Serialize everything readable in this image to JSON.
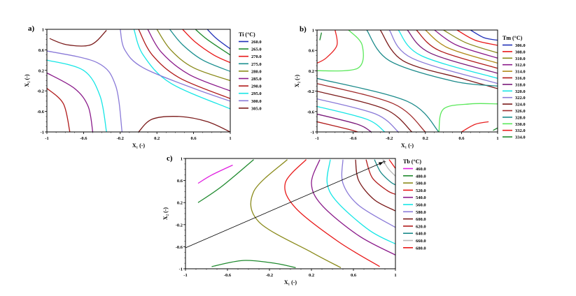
{
  "chart_data": [
    {
      "type": "contour",
      "panel_label": "a)",
      "title": "Ti (°C)",
      "xlabel": "X₁ (-)",
      "ylabel": "X₂ (-)",
      "xlim": [
        -1,
        1
      ],
      "ylim": [
        -1,
        1
      ],
      "xticks": [
        "-1",
        "-0.6",
        "-0.2",
        "0.2",
        "0.6",
        "1"
      ],
      "yticks": [
        "1",
        "0.6",
        "0.2",
        "-0.2",
        "-0.6",
        "-1"
      ],
      "legend": [
        {
          "label": "260.0",
          "color": "#1f2fb8"
        },
        {
          "label": "265.0",
          "color": "#1f8a2e"
        },
        {
          "label": "270.0",
          "color": "#e81818"
        },
        {
          "label": "275.0",
          "color": "#1a8f8f"
        },
        {
          "label": "280.0",
          "color": "#8a8a1a"
        },
        {
          "label": "285.0",
          "color": "#8a1a8a"
        },
        {
          "label": "290.0",
          "color": "#b01a1a"
        },
        {
          "label": "295.0",
          "color": "#16e6e6"
        },
        {
          "label": "300.0",
          "color": "#8a7ad8"
        },
        {
          "label": "305.0",
          "color": "#7a1a1a"
        }
      ]
    },
    {
      "type": "contour",
      "panel_label": "b)",
      "title": "Tm (°C)",
      "xlabel": "X₁ (-)",
      "ylabel": "X₂ (-)",
      "xlim": [
        -1,
        1
      ],
      "ylim": [
        -1,
        1
      ],
      "xticks": [
        "-1",
        "-0.6",
        "-0.2",
        "0.2",
        "0.6",
        "1"
      ],
      "yticks": [
        "1",
        "0.6",
        "0.2",
        "-0.2",
        "-0.6",
        "-1"
      ],
      "legend": [
        {
          "label": "306.0",
          "color": "#1f2fb8"
        },
        {
          "label": "308.0",
          "color": "#e81818"
        },
        {
          "label": "310.0",
          "color": "#8a8a1a"
        },
        {
          "label": "312.0",
          "color": "#8a1a8a"
        },
        {
          "label": "314.0",
          "color": "#b08a1a"
        },
        {
          "label": "316.0",
          "color": "#b01a1a"
        },
        {
          "label": "318.0",
          "color": "#7a1a7a"
        },
        {
          "label": "320.0",
          "color": "#16e6e6"
        },
        {
          "label": "322.0",
          "color": "#8a7ad8"
        },
        {
          "label": "324.0",
          "color": "#7a1a1a"
        },
        {
          "label": "326.0",
          "color": "#a02a2a"
        },
        {
          "label": "328.0",
          "color": "#1a8a8a"
        },
        {
          "label": "330.0",
          "color": "#5ae85a"
        },
        {
          "label": "332.0",
          "color": "#e82020"
        },
        {
          "label": "334.0",
          "color": "#1f8a2e"
        }
      ]
    },
    {
      "type": "contour",
      "panel_label": "c)",
      "title": "Tb (°C)",
      "xlabel": "X₁ (-)",
      "ylabel": "X₂ (-)",
      "xlim": [
        -1,
        1
      ],
      "ylim": [
        -1,
        1
      ],
      "xticks": [
        "-1",
        "-0.6",
        "-0.2",
        "0.2",
        "0.6",
        "1"
      ],
      "yticks": [
        "1",
        "0.6",
        "0.2",
        "-0.2",
        "-0.6",
        "-1"
      ],
      "legend": [
        {
          "label": "460.0",
          "color": "#e020e0"
        },
        {
          "label": "480.0",
          "color": "#1f8a2e"
        },
        {
          "label": "500.0",
          "color": "#8a8a1a"
        },
        {
          "label": "520.0",
          "color": "#e81818"
        },
        {
          "label": "540.0",
          "color": "#8a1a8a"
        },
        {
          "label": "560.0",
          "color": "#16e6e6"
        },
        {
          "label": "580.0",
          "color": "#8a7ad8"
        },
        {
          "label": "600.0",
          "color": "#7a1a1a"
        },
        {
          "label": "620.0",
          "color": "#b01a1a"
        },
        {
          "label": "640.0",
          "color": "#1a8a8a"
        },
        {
          "label": "660.0",
          "color": "#b8b8b8"
        },
        {
          "label": "680.0",
          "color": "#e81818"
        }
      ],
      "annotations": [
        {
          "type": "arrow",
          "from": [
            -1,
            -0.62
          ],
          "to": [
            0.88,
            0.93
          ],
          "marker": "+"
        }
      ]
    }
  ]
}
